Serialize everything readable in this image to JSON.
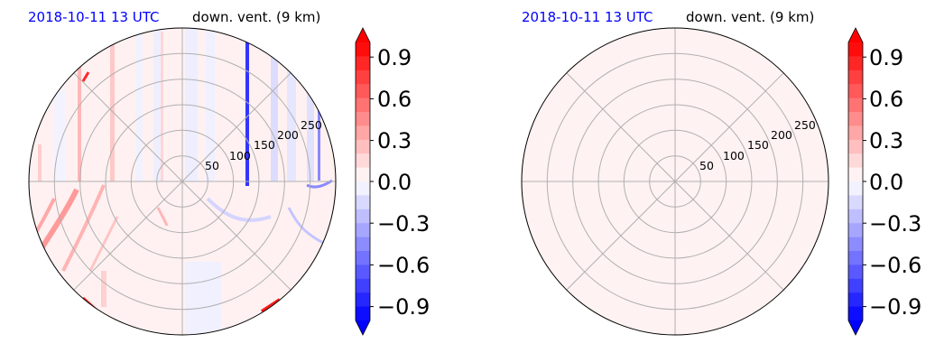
{
  "chart_data": [
    {
      "type": "heatmap",
      "projection": "polar",
      "title_left": "2018-10-11 13 UTC",
      "title_right": "down. vent. (9 km)",
      "radial_ticks": [
        50,
        100,
        150,
        200,
        250
      ],
      "rlim": [
        0,
        300
      ],
      "angular_gridlines_deg": [
        0,
        45,
        90,
        135,
        180,
        225,
        270,
        315
      ],
      "grid": true,
      "colorbar": {
        "ticks": [
          0.9,
          0.6,
          0.3,
          0.0,
          -0.3,
          -0.6,
          -0.9
        ],
        "tick_labels": [
          "0.9",
          "0.6",
          "0.3",
          "0.0",
          "−0.3",
          "−0.6",
          "−0.9"
        ],
        "range": [
          -1.0,
          1.0
        ],
        "levels": 20,
        "colormap": "bwr",
        "extend": "both"
      },
      "field_description": "mostly near-zero; positive (red) streaks in western half, negative (blue) streaks in north-east",
      "colors": {
        "positive": "#ff0000",
        "negative": "#0000ff",
        "title_date": "#0000ff"
      }
    },
    {
      "type": "heatmap",
      "projection": "polar",
      "title_left": "2018-10-11 13 UTC",
      "title_right": "down. vent. (9 km)",
      "radial_ticks": [
        50,
        100,
        150,
        200,
        250
      ],
      "rlim": [
        0,
        300
      ],
      "angular_gridlines_deg": [
        0,
        45,
        90,
        135,
        180,
        225,
        270,
        315
      ],
      "grid": true,
      "colorbar": {
        "ticks": [
          0.9,
          0.6,
          0.3,
          0.0,
          -0.3,
          -0.6,
          -0.9
        ],
        "tick_labels": [
          "0.9",
          "0.6",
          "0.3",
          "0.0",
          "−0.3",
          "−0.6",
          "−0.9"
        ],
        "range": [
          -1.0,
          1.0
        ],
        "levels": 20,
        "colormap": "bwr",
        "extend": "both"
      },
      "field_description": "uniform slightly positive value (~0.05) everywhere",
      "uniform_value": 0.05,
      "colors": {
        "fill": "#fff2f2",
        "title_date": "#0000ff"
      }
    }
  ]
}
